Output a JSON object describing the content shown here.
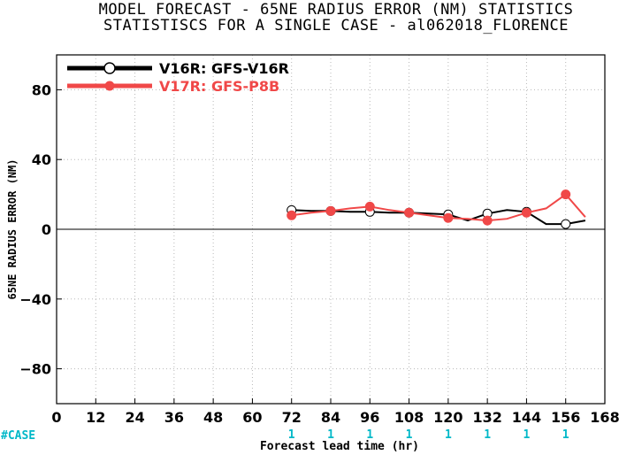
{
  "chart_data": {
    "type": "line",
    "title": "MODEL FORECAST - 65NE RADIUS ERROR (NM) STATISTICS",
    "subtitle": "STATISTISCS FOR A SINGLE CASE - al062018_FLORENCE",
    "xlabel": "Forecast lead time (hr)",
    "ylabel": "65NE RADIUS ERROR (NM)",
    "xlim": [
      0,
      168
    ],
    "ylim": [
      -100,
      100
    ],
    "x_ticks": [
      0,
      12,
      24,
      36,
      48,
      60,
      72,
      84,
      96,
      108,
      120,
      132,
      144,
      156,
      168
    ],
    "y_ticks": [
      -80,
      -40,
      0,
      40,
      80
    ],
    "grid": true,
    "legend_position": "top-left",
    "series": [
      {
        "name": "V16R: GFS-V16R",
        "color": "#000000",
        "x": [
          72,
          78,
          84,
          90,
          96,
          102,
          108,
          114,
          120,
          126,
          132,
          138,
          144,
          150,
          156,
          162
        ],
        "y": [
          11,
          10.5,
          10.5,
          10,
          10,
          9.5,
          9.5,
          9,
          8.5,
          5,
          9,
          11,
          10,
          3,
          3,
          5
        ],
        "marker_x": [
          72,
          84,
          96,
          108,
          120,
          132,
          144,
          156
        ]
      },
      {
        "name": "V17R: GFS-P8B",
        "color": "#f04848",
        "x": [
          72,
          78,
          84,
          90,
          96,
          102,
          108,
          114,
          120,
          126,
          132,
          138,
          144,
          150,
          156,
          162
        ],
        "y": [
          8,
          9.5,
          10.5,
          12,
          13,
          11,
          9.5,
          8,
          6.5,
          6,
          5,
          6,
          9.5,
          12,
          20,
          7
        ],
        "marker_x": [
          72,
          84,
          96,
          108,
          120,
          132,
          144,
          156
        ]
      }
    ],
    "case_label": "#CASE",
    "case_counts": [
      {
        "x": 72,
        "n": "1"
      },
      {
        "x": 84,
        "n": "1"
      },
      {
        "x": 96,
        "n": "1"
      },
      {
        "x": 108,
        "n": "1"
      },
      {
        "x": 120,
        "n": "1"
      },
      {
        "x": 132,
        "n": "1"
      },
      {
        "x": 144,
        "n": "1"
      },
      {
        "x": 156,
        "n": "1"
      }
    ],
    "case_color": "#00b8c8"
  }
}
